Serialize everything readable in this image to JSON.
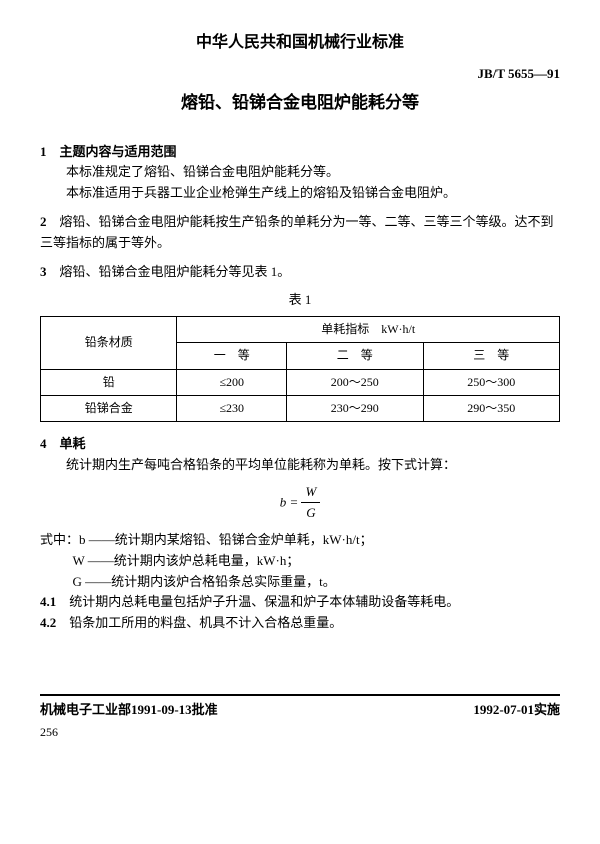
{
  "header": {
    "org": "中华人民共和国机械行业标准",
    "code": "JB/T 5655—91",
    "title": "熔铅、铅锑合金电阻炉能耗分等"
  },
  "s1": {
    "num": "1",
    "head": "主题内容与适用范围",
    "p1": "本标准规定了熔铅、铅锑合金电阻炉能耗分等。",
    "p2": "本标准适用于兵器工业企业枪弹生产线上的熔铅及铅锑合金电阻炉。"
  },
  "s2": {
    "num": "2",
    "text": "熔铅、铅锑合金电阻炉能耗按生产铅条的单耗分为一等、二等、三等三个等级。达不到三等指标的属于等外。"
  },
  "s3": {
    "num": "3",
    "text": "熔铅、铅锑合金电阻炉能耗分等见表 1。"
  },
  "table": {
    "caption": "表 1",
    "corner": "铅条材质",
    "metric_header": "单耗指标　kW·h/t",
    "grades": [
      "一　等",
      "二　等",
      "三　等"
    ],
    "rows": [
      {
        "material": "铅",
        "vals": [
          "≤200",
          "200～250",
          "250～300"
        ]
      },
      {
        "material": "铅锑合金",
        "vals": [
          "≤230",
          "230～290",
          "290～350"
        ]
      }
    ]
  },
  "s4": {
    "num": "4",
    "head": "单耗",
    "p1": "统计期内生产每吨合格铅条的平均单位能耗称为单耗。按下式计算：",
    "formula": {
      "lhs": "b =",
      "num": "W",
      "den": "G"
    },
    "where_label": "式中：",
    "where": [
      "b ——统计期内某熔铅、铅锑合金炉单耗，kW·h/t；",
      "W ——统计期内该炉总耗电量，kW·h；",
      "G ——统计期内该炉合格铅条总实际重量，t。"
    ],
    "p41": {
      "num": "4.1",
      "text": "统计期内总耗电量包括炉子升温、保温和炉子本体辅助设备等耗电。"
    },
    "p42": {
      "num": "4.2",
      "text": "铅条加工所用的料盘、机具不计入合格总重量。"
    }
  },
  "footer": {
    "left": "机械电子工业部1991-09-13批准",
    "right": "1992-07-01实施",
    "page": "256"
  }
}
